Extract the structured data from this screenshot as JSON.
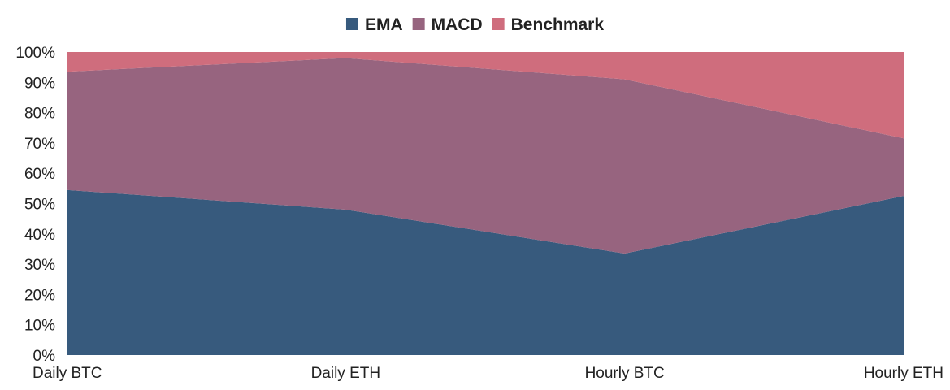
{
  "chart_data": {
    "type": "area",
    "stacked": "percent",
    "categories": [
      "Daily BTC",
      "Daily ETH",
      "Hourly BTC",
      "Hourly ETH"
    ],
    "series": [
      {
        "name": "EMA",
        "values": [
          54.5,
          48,
          33.5,
          52.5
        ],
        "color": "#375a7d"
      },
      {
        "name": "MACD",
        "values": [
          39,
          50,
          57.5,
          19
        ],
        "color": "#97647f"
      },
      {
        "name": "Benchmark",
        "values": [
          6.5,
          2,
          9,
          28.5
        ],
        "color": "#cf6d7d"
      }
    ],
    "y_ticks": [
      "0%",
      "10%",
      "20%",
      "30%",
      "40%",
      "50%",
      "60%",
      "70%",
      "80%",
      "90%",
      "100%"
    ],
    "ylim": [
      0,
      100
    ],
    "legend": "top-center",
    "grid": false
  }
}
